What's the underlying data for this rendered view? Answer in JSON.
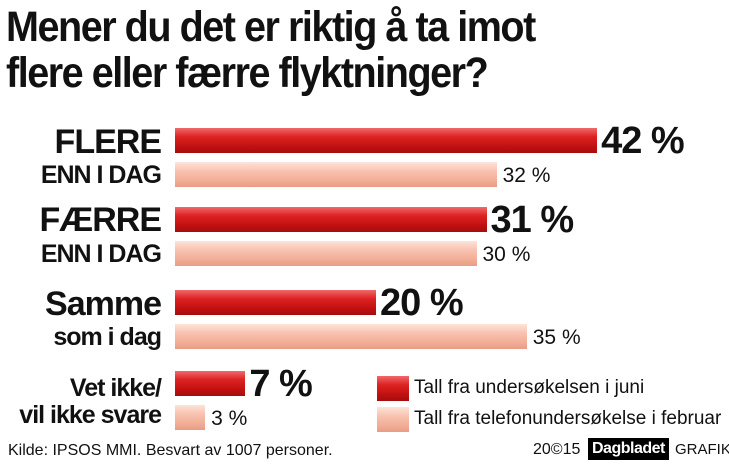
{
  "title_lines": [
    "Mener du det er riktig å ta imot",
    "flere eller færre flyktninger?"
  ],
  "chart_data": {
    "type": "bar",
    "orientation": "horizontal",
    "categories": [
      {
        "main": "FLERE",
        "sub": "ENN I DAG"
      },
      {
        "main": "FÆRRE",
        "sub": "ENN I DAG"
      },
      {
        "main": "Samme",
        "sub": "som i dag"
      },
      {
        "main": "Vet ikke/",
        "sub": "vil ikke svare"
      }
    ],
    "series": [
      {
        "name": "Tall fra undersøkelsen i juni",
        "values": [
          42,
          31,
          20,
          7
        ],
        "labels": [
          "42 %",
          "31 %",
          "20 %",
          "7 %"
        ],
        "color": "#c41212"
      },
      {
        "name": "Tall fra telefonundersøkelse i februar",
        "values": [
          32,
          30,
          35,
          3
        ],
        "labels": [
          "32 %",
          "30 %",
          "35 %",
          "3 %"
        ],
        "color": "#f5b8a4"
      }
    ],
    "legend_position": "bottom-right",
    "xlim": [
      0,
      100
    ]
  },
  "footer": {
    "source": "Kilde: IPSOS MMI. Besvart av 1007 personer.",
    "year": "20©15",
    "logo": "Dagbladet",
    "grafikk": "GRAFIKK"
  }
}
